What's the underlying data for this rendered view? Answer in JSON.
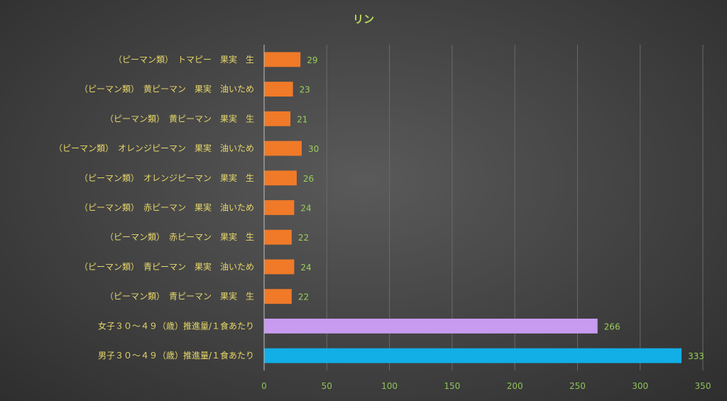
{
  "chart_data": {
    "type": "bar",
    "orientation": "horizontal",
    "title": "リン",
    "categories": [
      "（ピーマン類）　トマピー　果実　生",
      "（ピーマン類）　黄ピーマン　果実　油いため",
      "（ピーマン類）　黄ピーマン　果実　生",
      "（ピーマン類）　オレンジピーマン　果実　油いため",
      "（ピーマン類）　オレンジピーマン　果実　生",
      "（ピーマン類）　赤ピーマン　果実　油いため",
      "（ピーマン類）　赤ピーマン　果実　生",
      "（ピーマン類）　青ピーマン　果実　油いため",
      "（ピーマン類）　青ピーマン　果実　生",
      "女子３０～４９（歳）推進量/１食あたり",
      "男子３０～４９（歳）推進量/１食あたり"
    ],
    "values": [
      29,
      23,
      21,
      30,
      26,
      24,
      22,
      24,
      22,
      266,
      333
    ],
    "bar_colors": [
      "#f07a28",
      "#f07a28",
      "#f07a28",
      "#f07a28",
      "#f07a28",
      "#f07a28",
      "#f07a28",
      "#f07a28",
      "#f07a28",
      "#c89bf0",
      "#12aee6"
    ],
    "xlim": [
      0,
      350
    ],
    "xticks": [
      0,
      50,
      100,
      150,
      200,
      250,
      300,
      350
    ],
    "xlabel": "",
    "ylabel": "",
    "grid": "vertical",
    "legend": "none"
  }
}
